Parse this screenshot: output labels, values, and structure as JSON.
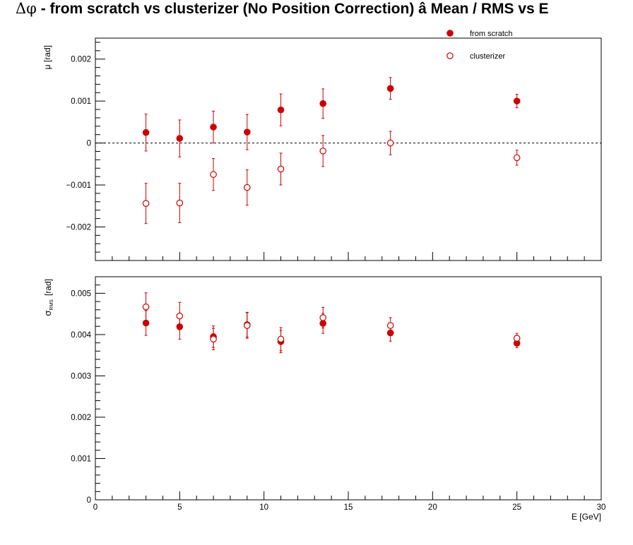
{
  "title": {
    "symbol": "Δφ",
    "text": "  -  from scratch vs clusterizer  (No Position Correction)  â  Mean / RMS vs E"
  },
  "colors": {
    "series": "#cc0000",
    "axis": "#000000",
    "reference_line": "#000000"
  },
  "chart_data": [
    {
      "type": "scatter",
      "panel": "mean",
      "ylabel": "μ  [rad]",
      "xlim": [
        0,
        30
      ],
      "ylim": [
        -0.0028,
        0.0025
      ],
      "yticks": [
        -0.002,
        -0.001,
        0,
        0.001,
        0.002
      ],
      "ytick_labels": [
        "−0.002",
        "−0.001",
        "0",
        "0.001",
        "0.002"
      ],
      "reference_line": {
        "y": 0,
        "style": "dashed"
      },
      "legend": {
        "placement": "top-right",
        "entries": [
          "from scratch",
          "clusterizer"
        ]
      },
      "series": [
        {
          "name": "from scratch",
          "marker": "filled-circle",
          "x": [
            3,
            5,
            7,
            9,
            11,
            13.5,
            17.5,
            25
          ],
          "y": [
            0.00025,
            0.00011,
            0.00038,
            0.00026,
            0.00079,
            0.00094,
            0.0013,
            0.001
          ],
          "err": [
            0.00044,
            0.00044,
            0.00038,
            0.00042,
            0.00038,
            0.00035,
            0.00026,
            0.00016
          ]
        },
        {
          "name": "clusterizer",
          "marker": "open-circle",
          "x": [
            3,
            5,
            7,
            9,
            11,
            13.5,
            17.5,
            25
          ],
          "y": [
            -0.00144,
            -0.00143,
            -0.00075,
            -0.00106,
            -0.00062,
            -0.00019,
            0.0,
            -0.00035
          ],
          "err": [
            0.00048,
            0.00047,
            0.00038,
            0.00042,
            0.00038,
            0.00037,
            0.00028,
            0.00018
          ]
        }
      ]
    },
    {
      "type": "scatter",
      "panel": "rms",
      "ylabel": "σ",
      "ylabel_sub": "RMS",
      "ylabel_unit": "[rad]",
      "xlabel": "E  [GeV]",
      "xlim": [
        0,
        30
      ],
      "ylim": [
        0,
        0.0054
      ],
      "xticks": [
        0,
        5,
        10,
        15,
        20,
        25,
        30
      ],
      "xtick_labels": [
        "0",
        "5",
        "10",
        "15",
        "20",
        "25",
        "30"
      ],
      "yticks": [
        0,
        0.001,
        0.002,
        0.003,
        0.004,
        0.005
      ],
      "ytick_labels": [
        "0",
        "0.001",
        "0.002",
        "0.003",
        "0.004",
        "0.005"
      ],
      "series": [
        {
          "name": "from scratch",
          "marker": "filled-circle",
          "x": [
            3,
            5,
            7,
            9,
            11,
            13.5,
            17.5,
            25
          ],
          "y": [
            0.00428,
            0.00419,
            0.00395,
            0.00424,
            0.00383,
            0.00427,
            0.00404,
            0.00379
          ],
          "err": [
            0.0003,
            0.0003,
            0.00026,
            0.0003,
            0.00027,
            0.00024,
            0.0002,
            0.00011
          ]
        },
        {
          "name": "clusterizer",
          "marker": "open-circle",
          "x": [
            3,
            5,
            7,
            9,
            11,
            13.5,
            17.5,
            25
          ],
          "y": [
            0.00467,
            0.00445,
            0.00389,
            0.00422,
            0.00389,
            0.00441,
            0.00422,
            0.00391
          ],
          "err": [
            0.00034,
            0.00033,
            0.00026,
            0.00031,
            0.00028,
            0.00025,
            0.00019,
            0.00012
          ]
        }
      ]
    }
  ]
}
